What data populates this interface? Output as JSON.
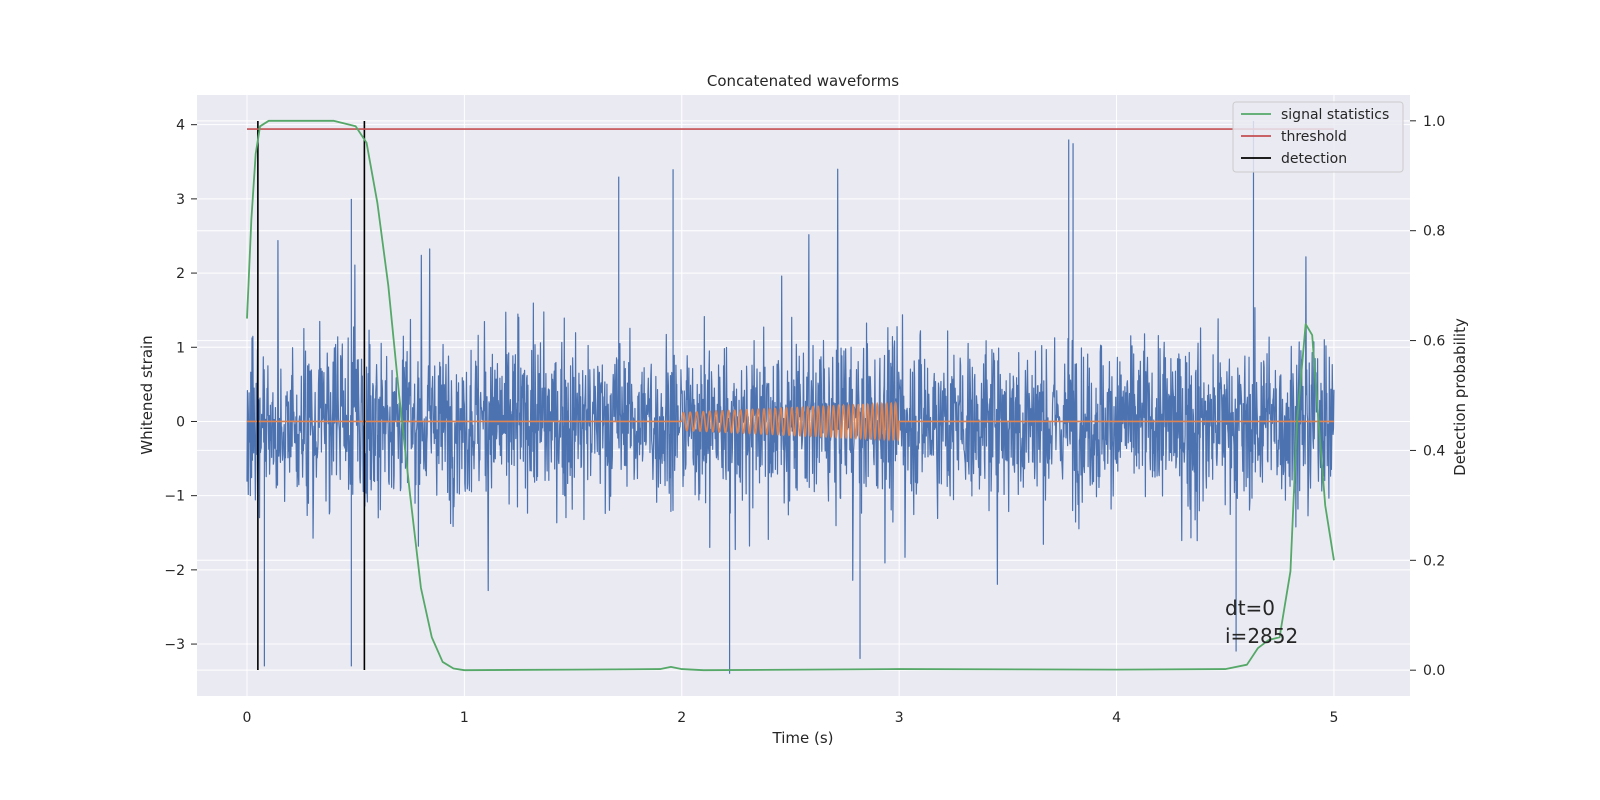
{
  "chart_data": {
    "type": "line",
    "title": "Concatenated waveforms",
    "xlabel": "Time (s)",
    "ylabel": "Whitened strain",
    "ylabel_right": "Detection probability",
    "xlim": [
      -0.23,
      5.35
    ],
    "ylim": [
      -3.7,
      4.4
    ],
    "ylim_right": [
      -0.047,
      1.047
    ],
    "x_ticks": [
      0,
      1,
      2,
      3,
      4,
      5
    ],
    "y_ticks": [
      -3,
      -2,
      -1,
      0,
      1,
      2,
      3,
      4
    ],
    "y_ticks_right": [
      0.0,
      0.2,
      0.4,
      0.6,
      0.8,
      1.0
    ],
    "x_tick_labels": [
      "0",
      "1",
      "2",
      "3",
      "4",
      "5"
    ],
    "y_tick_labels": [
      "−3",
      "−2",
      "−1",
      "0",
      "1",
      "2",
      "3",
      "4"
    ],
    "y_right_tick_labels": [
      "0.0",
      "0.2",
      "0.4",
      "0.6",
      "0.8",
      "1.0"
    ],
    "grid": true,
    "legend_position": "top-right",
    "colors": {
      "noise": "#4c72b0",
      "waveform": "#dd8452",
      "signal_statistics": "#55a868",
      "threshold": "#c44e52",
      "detection": "#000000",
      "plot_background": "#eaeaf2",
      "grid": "#ffffff"
    },
    "noise": {
      "x_range": [
        0,
        5
      ],
      "approx_envelope": [
        -3.4,
        3.4
      ],
      "peak_spikes": [
        {
          "x": 0.05,
          "y": 1.9
        },
        {
          "x": 0.48,
          "y": 3.0
        },
        {
          "x": 0.48,
          "y": -3.3
        },
        {
          "x": 0.08,
          "y": -3.3
        },
        {
          "x": 1.71,
          "y": 3.3
        },
        {
          "x": 1.96,
          "y": 3.4
        },
        {
          "x": 2.22,
          "y": -3.4
        },
        {
          "x": 2.82,
          "y": -3.2
        },
        {
          "x": 3.78,
          "y": 3.8
        },
        {
          "x": 3.8,
          "y": 3.75
        },
        {
          "x": 4.63,
          "y": 4.05
        },
        {
          "x": 4.55,
          "y": -3.1
        }
      ]
    },
    "series": [
      {
        "name": "signal statistics",
        "axis": "right",
        "x": [
          0.0,
          0.02,
          0.04,
          0.06,
          0.1,
          0.2,
          0.4,
          0.5,
          0.55,
          0.6,
          0.65,
          0.7,
          0.75,
          0.8,
          0.85,
          0.9,
          0.95,
          1.0,
          1.5,
          1.9,
          1.95,
          2.0,
          2.1,
          3.0,
          4.0,
          4.5,
          4.6,
          4.65,
          4.7,
          4.75,
          4.8,
          4.83,
          4.87,
          4.9,
          4.93,
          4.96,
          5.0
        ],
        "y": [
          0.64,
          0.82,
          0.94,
          0.99,
          1.0,
          1.0,
          1.0,
          0.99,
          0.96,
          0.85,
          0.7,
          0.5,
          0.32,
          0.15,
          0.06,
          0.015,
          0.003,
          0.0,
          0.001,
          0.002,
          0.006,
          0.002,
          0.0,
          0.002,
          0.001,
          0.002,
          0.01,
          0.04,
          0.055,
          0.06,
          0.18,
          0.45,
          0.63,
          0.61,
          0.45,
          0.3,
          0.2
        ]
      },
      {
        "name": "threshold",
        "axis": "right",
        "x": [
          0,
          5
        ],
        "y": [
          0.985,
          0.985
        ]
      }
    ],
    "waveform": {
      "x_range": [
        0,
        5
      ],
      "zero_line": 0,
      "chirp_x_range": [
        2,
        3
      ],
      "chirp_amplitude_start": 0.12,
      "chirp_amplitude_end": 0.25,
      "chirp_cycles": 40
    },
    "detections": {
      "name": "detection",
      "x": [
        0.05,
        0.54
      ],
      "y_range": [
        -3.35,
        4.05
      ]
    },
    "legend": [
      "signal statistics",
      "threshold",
      "detection"
    ],
    "annotations": [
      "dt=0",
      "i=2852"
    ]
  }
}
